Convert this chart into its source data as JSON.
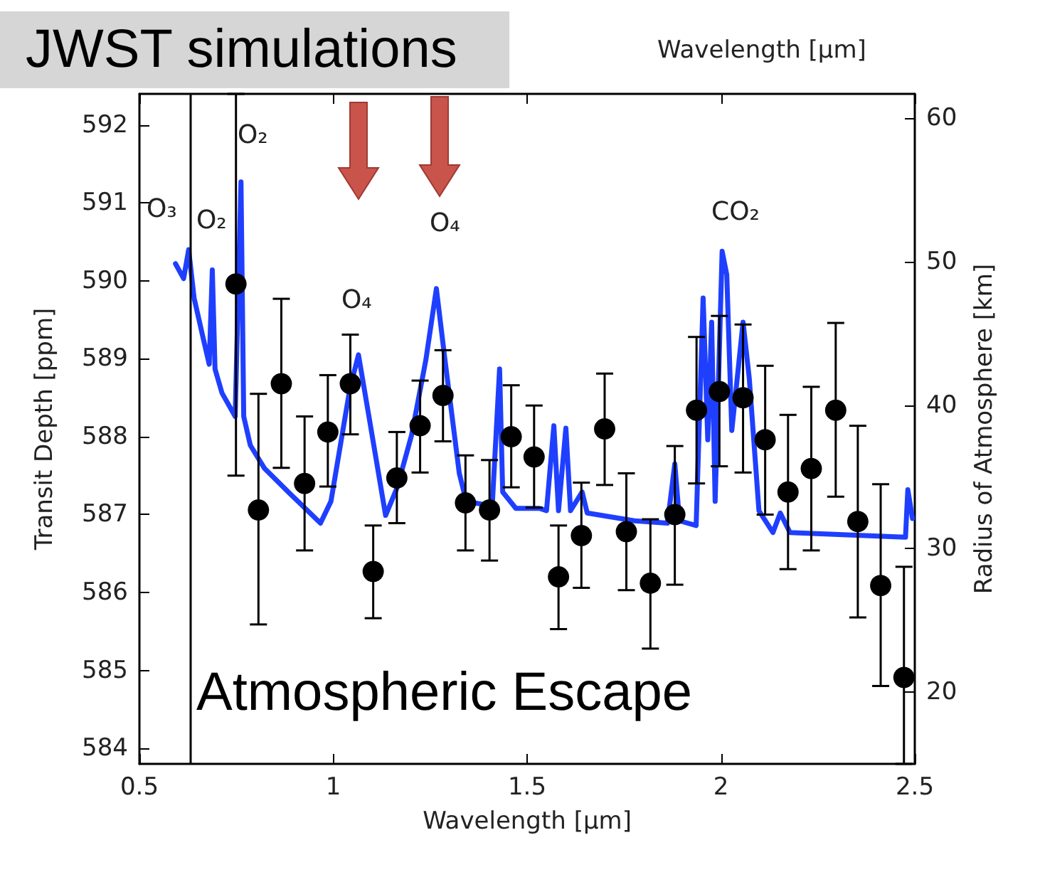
{
  "chart_data": {
    "type": "scatter",
    "title": "JWST simulations",
    "xlabel": "Wavelength [μm]",
    "ylabel": "Transit Depth [ppm]",
    "y2label": "Radius of Atmosphere [km]",
    "x2label": "Wavelength [μm]",
    "xlim": [
      0.5,
      2.5
    ],
    "xticks": [
      0.5,
      1.0,
      1.5,
      2.0,
      2.5
    ],
    "ylim": [
      583.8,
      592.4
    ],
    "yticks": [
      584,
      585,
      586,
      587,
      588,
      589,
      590,
      591,
      592
    ],
    "y2lim": [
      15,
      61.7
    ],
    "y2ticks": [
      20,
      30,
      40,
      50,
      60
    ],
    "grid": false,
    "marker": "circle",
    "series": [
      {
        "type": "line",
        "color": "#1f3fff",
        "marker": "none",
        "x": [
          0.593,
          0.614,
          0.627,
          0.641,
          0.666,
          0.68,
          0.688,
          0.695,
          0.713,
          0.747,
          0.762,
          0.769,
          0.786,
          0.823,
          0.884,
          0.967,
          0.994,
          1.043,
          1.065,
          1.092,
          1.135,
          1.165,
          1.202,
          1.239,
          1.266,
          1.288,
          1.325,
          1.343,
          1.41,
          1.429,
          1.437,
          1.471,
          1.532,
          1.55,
          1.569,
          1.581,
          1.6,
          1.612,
          1.642,
          1.655,
          1.777,
          1.862,
          1.881,
          1.893,
          1.936,
          1.954,
          1.966,
          1.976,
          1.985,
          2.003,
          2.015,
          2.028,
          2.057,
          2.073,
          2.098,
          2.134,
          2.153,
          2.178,
          2.476,
          2.482,
          2.494
        ],
        "values": [
          590.22,
          590.03,
          590.4,
          589.78,
          589.23,
          588.93,
          590.14,
          588.87,
          588.56,
          588.26,
          591.27,
          588.26,
          587.89,
          587.59,
          587.29,
          586.89,
          587.17,
          588.62,
          589.05,
          588.26,
          586.99,
          587.35,
          588.02,
          588.99,
          589.9,
          588.99,
          587.53,
          587.17,
          587.11,
          588.87,
          587.29,
          587.08,
          587.08,
          587.05,
          588.14,
          587.05,
          588.11,
          587.05,
          587.29,
          587.02,
          586.92,
          586.89,
          587.65,
          586.92,
          586.86,
          589.78,
          587.96,
          589.47,
          587.17,
          590.38,
          590.08,
          588.08,
          589.47,
          588.75,
          587.05,
          586.77,
          587.02,
          586.77,
          586.71,
          587.32,
          586.95
        ]
      },
      {
        "color": "#000000",
        "x": [
          0.749,
          0.807,
          0.866,
          0.926,
          0.986,
          1.044,
          1.103,
          1.164,
          1.224,
          1.283,
          1.341,
          1.403,
          1.459,
          1.518,
          1.581,
          1.64,
          1.7,
          1.756,
          1.818,
          1.881,
          1.937,
          1.996,
          2.057,
          2.114,
          2.173,
          2.233,
          2.296,
          2.353,
          2.412,
          2.472
        ],
        "values": [
          589.96,
          587.06,
          588.68,
          587.4,
          588.06,
          588.68,
          586.27,
          587.47,
          588.14,
          588.53,
          587.15,
          587.06,
          588.0,
          587.74,
          586.2,
          586.73,
          588.1,
          586.78,
          586.12,
          587.0,
          588.34,
          588.58,
          588.5,
          587.96,
          587.29,
          587.59,
          588.34,
          586.91,
          586.09,
          584.91
        ],
        "errors": [
          [
            587.5,
            592.4
          ],
          [
            585.59,
            588.55
          ],
          [
            587.6,
            589.77
          ],
          [
            586.54,
            588.26
          ],
          [
            587.36,
            588.79
          ],
          [
            588.03,
            589.31
          ],
          [
            585.67,
            586.86
          ],
          [
            586.89,
            588.06
          ],
          [
            587.54,
            588.72
          ],
          [
            587.94,
            589.11
          ],
          [
            586.54,
            587.76
          ],
          [
            586.41,
            587.7
          ],
          [
            587.35,
            588.66
          ],
          [
            587.09,
            588.4
          ],
          [
            585.53,
            586.86
          ],
          [
            586.06,
            587.41
          ],
          [
            587.38,
            588.81
          ],
          [
            586.03,
            587.53
          ],
          [
            585.28,
            586.94
          ],
          [
            586.1,
            587.88
          ],
          [
            587.4,
            589.28
          ],
          [
            587.62,
            589.55
          ],
          [
            587.54,
            589.44
          ],
          [
            587.0,
            588.91
          ],
          [
            586.3,
            588.28
          ],
          [
            586.54,
            588.64
          ],
          [
            587.23,
            589.46
          ],
          [
            585.68,
            588.14
          ],
          [
            584.8,
            587.39
          ],
          [
            583.8,
            586.33
          ]
        ]
      }
    ],
    "ref_lines": [
      {
        "axis": "x",
        "value": 0.625,
        "color": "#000000"
      }
    ],
    "annotations": [
      "O₃",
      "O₂",
      "O₂",
      "O₄",
      "O₄",
      "CO₂",
      "Atmospheric Escape"
    ]
  }
}
